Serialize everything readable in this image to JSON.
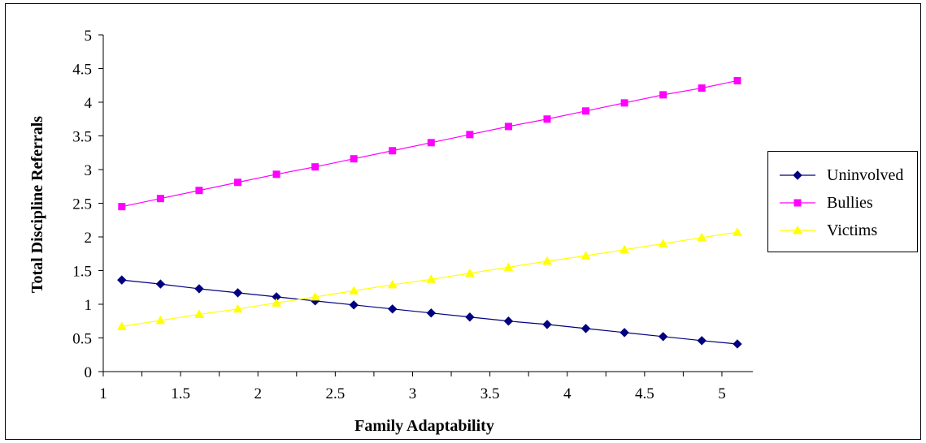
{
  "chart_data": {
    "type": "line",
    "xlabel": "Family Adaptability",
    "ylabel": "Total Discipline Referrals",
    "xlim": [
      1,
      5.2
    ],
    "ylim": [
      0,
      5
    ],
    "xticks": [
      1,
      1.5,
      2,
      2.5,
      3,
      3.5,
      4,
      4.5,
      5
    ],
    "yticks": [
      0,
      0.5,
      1,
      1.5,
      2,
      2.5,
      3,
      3.5,
      4,
      4.5,
      5
    ],
    "x": [
      1.12,
      1.37,
      1.62,
      1.87,
      2.12,
      2.37,
      2.62,
      2.87,
      3.12,
      3.37,
      3.62,
      3.87,
      4.12,
      4.37,
      4.62,
      4.87,
      5.1
    ],
    "grid": false,
    "legend_position": "right",
    "series": [
      {
        "name": "Uninvolved",
        "color": "#000080",
        "marker": "diamond",
        "values": [
          1.36,
          1.3,
          1.23,
          1.17,
          1.11,
          1.05,
          0.99,
          0.93,
          0.87,
          0.81,
          0.75,
          0.7,
          0.64,
          0.58,
          0.52,
          0.46,
          0.41
        ]
      },
      {
        "name": "Bullies",
        "color": "#FF00FF",
        "marker": "square",
        "values": [
          2.45,
          2.57,
          2.69,
          2.81,
          2.93,
          3.04,
          3.16,
          3.28,
          3.4,
          3.52,
          3.64,
          3.75,
          3.87,
          3.99,
          4.11,
          4.21,
          4.32
        ]
      },
      {
        "name": "Victims",
        "color": "#FFFF00",
        "marker": "triangle",
        "values": [
          0.67,
          0.76,
          0.85,
          0.93,
          1.02,
          1.11,
          1.2,
          1.29,
          1.37,
          1.46,
          1.55,
          1.64,
          1.72,
          1.81,
          1.9,
          1.99,
          2.07
        ]
      }
    ]
  }
}
